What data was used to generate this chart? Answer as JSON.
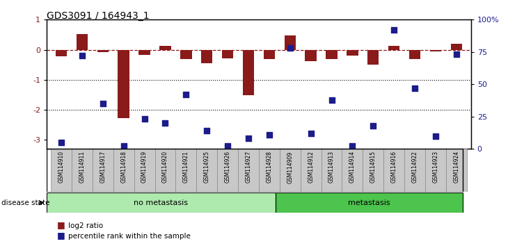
{
  "title": "GDS3091 / 164943_1",
  "samples": [
    "GSM114910",
    "GSM114911",
    "GSM114917",
    "GSM114918",
    "GSM114919",
    "GSM114920",
    "GSM114921",
    "GSM114925",
    "GSM114926",
    "GSM114927",
    "GSM114928",
    "GSM114909",
    "GSM114912",
    "GSM114913",
    "GSM114914",
    "GSM114915",
    "GSM114916",
    "GSM114922",
    "GSM114923",
    "GSM114924"
  ],
  "log2_ratio": [
    -0.22,
    0.52,
    -0.07,
    -2.28,
    -0.17,
    0.13,
    -0.3,
    -0.45,
    -0.28,
    -1.52,
    -0.3,
    0.48,
    -0.38,
    -0.32,
    -0.2,
    -0.5,
    0.13,
    -0.32,
    -0.06,
    0.2
  ],
  "percentile_pct": [
    5,
    72,
    35,
    2,
    23,
    20,
    42,
    14,
    2,
    8,
    11,
    78,
    12,
    38,
    2,
    18,
    92,
    47,
    10,
    73
  ],
  "no_metastasis_count": 11,
  "bar_color": "#8B1A1A",
  "dot_color": "#1C1C8B",
  "ylim_left": [
    -3.3,
    1.0
  ],
  "ylim_right": [
    0,
    100
  ],
  "yticks_left": [
    1,
    0,
    -1,
    -2,
    -3
  ],
  "yticks_right": [
    0,
    25,
    50,
    75,
    100
  ],
  "dotted_lines": [
    -1,
    -2
  ],
  "no_meta_color": "#AEEAAE",
  "meta_color": "#4DC44D",
  "tick_label_color_left": "#8B1A1A",
  "tick_label_color_right": "#1C1C8B",
  "legend_bar_label": "log2 ratio",
  "legend_dot_label": "percentile rank within the sample",
  "disease_state_label": "disease state",
  "no_meta_label": "no metastasis",
  "meta_label": "metastasis",
  "gray_box_color": "#C8C8C8"
}
